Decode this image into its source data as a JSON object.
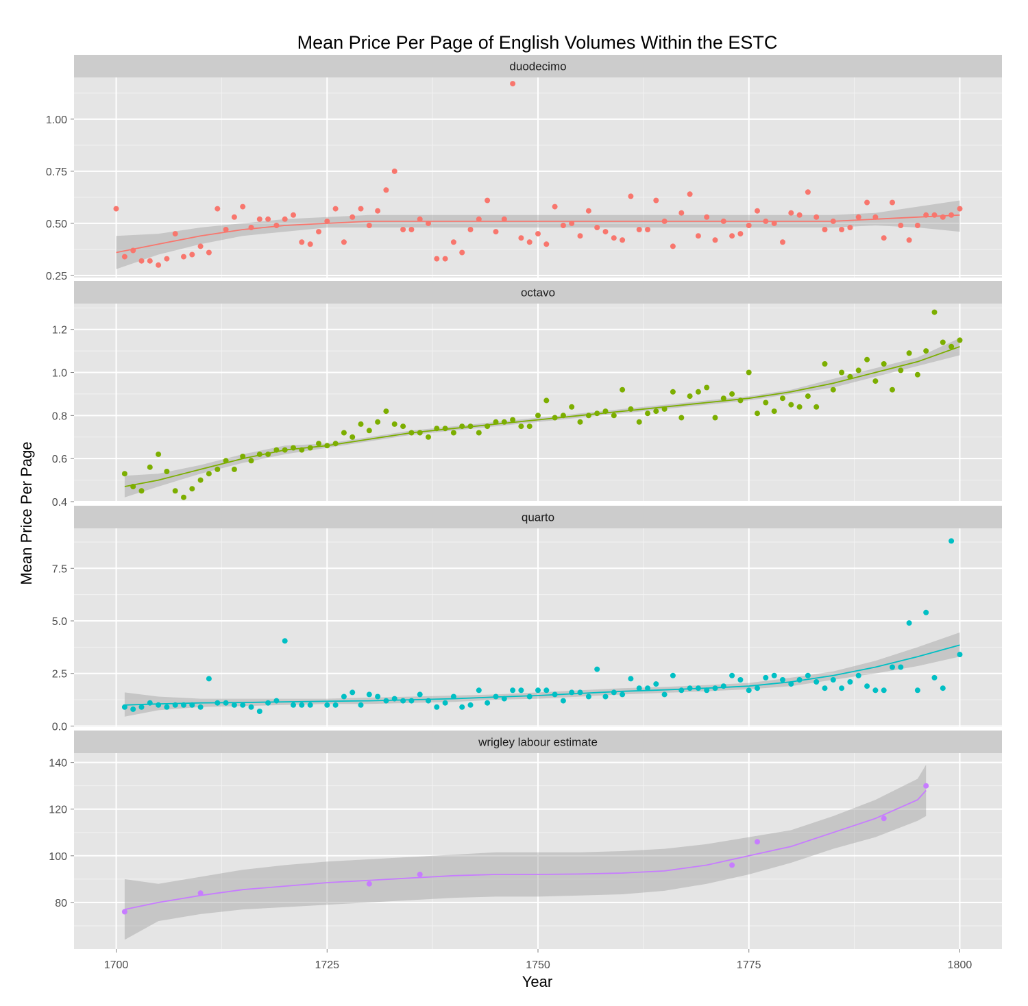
{
  "chart_data": {
    "type": "scatter",
    "title": "Mean Price Per Page of English Volumes Within the ESTC",
    "xlabel": "Year",
    "ylabel": "Mean Price Per Page",
    "xlim": [
      1695,
      1805
    ],
    "x_ticks": [
      1700,
      1725,
      1750,
      1775,
      1800
    ],
    "grid": true,
    "legend": "none",
    "smoother": "loess with confidence band",
    "panels": [
      {
        "name": "duodecimo",
        "color": "#F8766D",
        "ylim": [
          0.24,
          1.2
        ],
        "y_ticks": [
          0.25,
          0.5,
          0.75,
          1.0
        ],
        "y_tick_labels": [
          "0.25",
          "0.50",
          "0.75",
          "1.00"
        ],
        "points": {
          "x": [
            1700,
            1701,
            1702,
            1703,
            1704,
            1705,
            1706,
            1707,
            1708,
            1709,
            1710,
            1711,
            1712,
            1713,
            1714,
            1715,
            1716,
            1717,
            1718,
            1719,
            1720,
            1721,
            1722,
            1723,
            1724,
            1725,
            1726,
            1727,
            1728,
            1729,
            1730,
            1731,
            1732,
            1733,
            1734,
            1735,
            1736,
            1737,
            1738,
            1739,
            1740,
            1741,
            1742,
            1743,
            1744,
            1745,
            1746,
            1747,
            1748,
            1749,
            1750,
            1751,
            1752,
            1753,
            1754,
            1755,
            1756,
            1757,
            1758,
            1759,
            1760,
            1761,
            1762,
            1763,
            1764,
            1765,
            1766,
            1767,
            1768,
            1769,
            1770,
            1771,
            1772,
            1773,
            1774,
            1775,
            1776,
            1777,
            1778,
            1779,
            1780,
            1781,
            1782,
            1783,
            1784,
            1785,
            1786,
            1787,
            1788,
            1789,
            1790,
            1791,
            1792,
            1793,
            1794,
            1795,
            1796,
            1797,
            1798,
            1799,
            1800
          ],
          "y": [
            0.57,
            0.34,
            0.37,
            0.32,
            0.32,
            0.3,
            0.33,
            0.45,
            0.34,
            0.35,
            0.39,
            0.36,
            0.57,
            0.47,
            0.53,
            0.58,
            0.48,
            0.52,
            0.52,
            0.49,
            0.52,
            0.54,
            0.41,
            0.4,
            0.46,
            0.51,
            0.57,
            0.41,
            0.53,
            0.57,
            0.49,
            0.56,
            0.66,
            0.75,
            0.47,
            0.47,
            0.52,
            0.5,
            0.33,
            0.33,
            0.41,
            0.36,
            0.47,
            0.52,
            0.61,
            0.46,
            0.52,
            1.17,
            0.43,
            0.41,
            0.45,
            0.4,
            0.58,
            0.49,
            0.5,
            0.44,
            0.56,
            0.48,
            0.46,
            0.43,
            0.42,
            0.63,
            0.47,
            0.47,
            0.61,
            0.51,
            0.39,
            0.55,
            0.64,
            0.44,
            0.53,
            0.42,
            0.51,
            0.44,
            0.45,
            0.49,
            0.56,
            0.51,
            0.5,
            0.41,
            0.55,
            0.54,
            0.65,
            0.53,
            0.47,
            0.51,
            0.47,
            0.48,
            0.53,
            0.6,
            0.53,
            0.43,
            0.6,
            0.49,
            0.42,
            0.49,
            0.54,
            0.54,
            0.53,
            0.54,
            0.57
          ]
        },
        "smooth": {
          "x": [
            1700,
            1705,
            1710,
            1715,
            1720,
            1725,
            1730,
            1735,
            1740,
            1745,
            1750,
            1755,
            1760,
            1765,
            1770,
            1775,
            1780,
            1785,
            1790,
            1795,
            1800
          ],
          "y": [
            0.36,
            0.4,
            0.44,
            0.47,
            0.49,
            0.5,
            0.51,
            0.51,
            0.51,
            0.51,
            0.51,
            0.51,
            0.51,
            0.51,
            0.51,
            0.51,
            0.51,
            0.51,
            0.52,
            0.53,
            0.54
          ],
          "lower": [
            0.28,
            0.35,
            0.4,
            0.44,
            0.46,
            0.48,
            0.48,
            0.48,
            0.48,
            0.48,
            0.48,
            0.48,
            0.48,
            0.48,
            0.48,
            0.48,
            0.48,
            0.48,
            0.49,
            0.48,
            0.46
          ],
          "upper": [
            0.44,
            0.45,
            0.48,
            0.5,
            0.52,
            0.53,
            0.54,
            0.54,
            0.54,
            0.54,
            0.54,
            0.54,
            0.54,
            0.54,
            0.54,
            0.54,
            0.54,
            0.54,
            0.55,
            0.58,
            0.61
          ]
        }
      },
      {
        "name": "octavo",
        "color": "#7CAE00",
        "ylim": [
          0.4,
          1.32
        ],
        "y_ticks": [
          0.4,
          0.6,
          0.8,
          1.0,
          1.2
        ],
        "y_tick_labels": [
          "0.4",
          "0.6",
          "0.8",
          "1.0",
          "1.2"
        ],
        "points": {
          "x": [
            1701,
            1702,
            1703,
            1704,
            1705,
            1706,
            1707,
            1708,
            1709,
            1710,
            1711,
            1712,
            1713,
            1714,
            1715,
            1716,
            1717,
            1718,
            1719,
            1720,
            1721,
            1722,
            1723,
            1724,
            1725,
            1726,
            1727,
            1728,
            1729,
            1730,
            1731,
            1732,
            1733,
            1734,
            1735,
            1736,
            1737,
            1738,
            1739,
            1740,
            1741,
            1742,
            1743,
            1744,
            1745,
            1746,
            1747,
            1748,
            1749,
            1750,
            1751,
            1752,
            1753,
            1754,
            1755,
            1756,
            1757,
            1758,
            1759,
            1760,
            1761,
            1762,
            1763,
            1764,
            1765,
            1766,
            1767,
            1768,
            1769,
            1770,
            1771,
            1772,
            1773,
            1774,
            1775,
            1776,
            1777,
            1778,
            1779,
            1780,
            1781,
            1782,
            1783,
            1784,
            1785,
            1786,
            1787,
            1788,
            1789,
            1790,
            1791,
            1792,
            1793,
            1794,
            1795,
            1796,
            1797,
            1798,
            1799,
            1800
          ],
          "y": [
            0.53,
            0.47,
            0.45,
            0.56,
            0.62,
            0.54,
            0.45,
            0.42,
            0.46,
            0.5,
            0.53,
            0.55,
            0.59,
            0.55,
            0.61,
            0.59,
            0.62,
            0.62,
            0.64,
            0.64,
            0.65,
            0.64,
            0.65,
            0.67,
            0.66,
            0.67,
            0.72,
            0.7,
            0.76,
            0.73,
            0.77,
            0.82,
            0.76,
            0.75,
            0.72,
            0.72,
            0.7,
            0.74,
            0.74,
            0.72,
            0.75,
            0.75,
            0.72,
            0.75,
            0.77,
            0.77,
            0.78,
            0.75,
            0.75,
            0.8,
            0.87,
            0.79,
            0.8,
            0.84,
            0.77,
            0.8,
            0.81,
            0.82,
            0.8,
            0.92,
            0.83,
            0.77,
            0.81,
            0.82,
            0.83,
            0.91,
            0.79,
            0.89,
            0.91,
            0.93,
            0.79,
            0.88,
            0.9,
            0.87,
            1.0,
            0.81,
            0.86,
            0.82,
            0.88,
            0.85,
            0.84,
            0.89,
            0.84,
            1.04,
            0.92,
            1.0,
            0.98,
            1.01,
            1.06,
            0.96,
            1.04,
            0.92,
            1.01,
            1.09,
            0.99,
            1.1,
            1.28,
            1.14,
            1.12,
            1.15
          ]
        },
        "smooth": {
          "x": [
            1701,
            1705,
            1710,
            1715,
            1720,
            1725,
            1730,
            1735,
            1740,
            1745,
            1750,
            1755,
            1760,
            1765,
            1770,
            1775,
            1780,
            1785,
            1790,
            1795,
            1800
          ],
          "y": [
            0.47,
            0.5,
            0.55,
            0.6,
            0.64,
            0.66,
            0.69,
            0.72,
            0.74,
            0.76,
            0.78,
            0.8,
            0.82,
            0.84,
            0.86,
            0.88,
            0.91,
            0.95,
            1.0,
            1.05,
            1.12
          ],
          "lower": [
            0.42,
            0.47,
            0.53,
            0.58,
            0.62,
            0.65,
            0.68,
            0.71,
            0.73,
            0.75,
            0.77,
            0.79,
            0.81,
            0.83,
            0.85,
            0.87,
            0.9,
            0.93,
            0.98,
            1.03,
            1.08
          ],
          "upper": [
            0.52,
            0.53,
            0.57,
            0.62,
            0.66,
            0.67,
            0.7,
            0.73,
            0.75,
            0.77,
            0.79,
            0.81,
            0.83,
            0.85,
            0.87,
            0.89,
            0.92,
            0.97,
            1.02,
            1.07,
            1.16
          ]
        }
      },
      {
        "name": "quarto",
        "color": "#00BFC4",
        "ylim": [
          -0.05,
          9.4
        ],
        "y_ticks": [
          0.0,
          2.5,
          5.0,
          7.5
        ],
        "y_tick_labels": [
          "0.0",
          "2.5",
          "5.0",
          "7.5"
        ],
        "points": {
          "x": [
            1701,
            1702,
            1703,
            1704,
            1705,
            1706,
            1707,
            1708,
            1709,
            1710,
            1711,
            1712,
            1713,
            1714,
            1715,
            1716,
            1717,
            1718,
            1719,
            1720,
            1721,
            1722,
            1723,
            1725,
            1726,
            1727,
            1728,
            1729,
            1730,
            1731,
            1732,
            1733,
            1734,
            1735,
            1736,
            1737,
            1738,
            1739,
            1740,
            1741,
            1742,
            1743,
            1744,
            1745,
            1746,
            1747,
            1748,
            1749,
            1750,
            1751,
            1752,
            1753,
            1754,
            1755,
            1756,
            1757,
            1758,
            1759,
            1760,
            1761,
            1762,
            1763,
            1764,
            1765,
            1766,
            1767,
            1768,
            1769,
            1770,
            1771,
            1772,
            1773,
            1774,
            1775,
            1776,
            1777,
            1778,
            1779,
            1780,
            1781,
            1782,
            1783,
            1784,
            1785,
            1786,
            1787,
            1788,
            1789,
            1790,
            1791,
            1792,
            1793,
            1794,
            1795,
            1796,
            1797,
            1798,
            1799,
            1800
          ],
          "y": [
            0.9,
            0.8,
            0.9,
            1.1,
            1.0,
            0.9,
            1.0,
            1.0,
            1.0,
            0.9,
            2.25,
            1.1,
            1.1,
            1.0,
            1.0,
            0.9,
            0.7,
            1.1,
            1.2,
            4.05,
            1.0,
            1.0,
            1.0,
            1.0,
            1.0,
            1.4,
            1.6,
            1.0,
            1.5,
            1.4,
            1.2,
            1.3,
            1.2,
            1.2,
            1.5,
            1.2,
            0.9,
            1.1,
            1.4,
            0.9,
            1.0,
            1.7,
            1.1,
            1.4,
            1.3,
            1.7,
            1.7,
            1.4,
            1.7,
            1.7,
            1.5,
            1.2,
            1.6,
            1.6,
            1.4,
            2.7,
            1.4,
            1.6,
            1.5,
            2.25,
            1.8,
            1.8,
            2.0,
            1.5,
            2.4,
            1.7,
            1.8,
            1.8,
            1.7,
            1.8,
            1.9,
            2.4,
            2.2,
            1.7,
            1.8,
            2.3,
            2.4,
            2.2,
            2.0,
            2.2,
            2.4,
            2.1,
            1.8,
            2.2,
            1.8,
            2.1,
            2.4,
            1.9,
            1.7,
            1.7,
            2.8,
            2.8,
            4.9,
            1.7,
            5.4,
            2.3,
            1.8,
            8.8,
            3.4
          ]
        },
        "smooth": {
          "x": [
            1701,
            1705,
            1710,
            1715,
            1720,
            1725,
            1730,
            1735,
            1740,
            1745,
            1750,
            1755,
            1760,
            1765,
            1770,
            1775,
            1780,
            1785,
            1790,
            1795,
            1800
          ],
          "y": [
            1.0,
            1.05,
            1.1,
            1.12,
            1.15,
            1.18,
            1.2,
            1.25,
            1.3,
            1.38,
            1.45,
            1.55,
            1.65,
            1.72,
            1.8,
            1.9,
            2.1,
            2.4,
            2.8,
            3.3,
            3.85
          ],
          "lower": [
            0.45,
            0.75,
            0.9,
            0.95,
            1.0,
            1.05,
            1.05,
            1.1,
            1.15,
            1.25,
            1.3,
            1.4,
            1.5,
            1.58,
            1.65,
            1.75,
            1.9,
            2.2,
            2.5,
            2.85,
            3.3
          ],
          "upper": [
            1.6,
            1.4,
            1.3,
            1.3,
            1.3,
            1.3,
            1.35,
            1.4,
            1.45,
            1.5,
            1.6,
            1.7,
            1.8,
            1.86,
            1.95,
            2.05,
            2.3,
            2.6,
            3.1,
            3.75,
            4.45
          ]
        }
      },
      {
        "name": "wrigley labour estimate",
        "color": "#C77CFF",
        "ylim": [
          60,
          144
        ],
        "y_ticks": [
          80,
          100,
          120,
          140
        ],
        "y_tick_labels": [
          "80",
          "100",
          "120",
          "140"
        ],
        "points": {
          "x": [
            1701,
            1710,
            1730,
            1736,
            1773,
            1776,
            1791,
            1796
          ],
          "y": [
            76,
            84,
            88,
            92,
            96,
            106,
            116,
            130
          ]
        },
        "smooth": {
          "x": [
            1701,
            1705,
            1710,
            1715,
            1720,
            1725,
            1730,
            1735,
            1740,
            1745,
            1750,
            1755,
            1760,
            1765,
            1770,
            1775,
            1780,
            1785,
            1790,
            1795,
            1796
          ],
          "y": [
            77,
            80,
            83,
            85.5,
            87,
            88.5,
            89.5,
            90.5,
            91.5,
            92,
            92,
            92.2,
            92.6,
            93.5,
            96,
            100,
            104,
            110,
            116,
            124,
            128
          ],
          "lower": [
            64,
            72,
            75,
            77,
            78,
            79,
            80,
            81,
            82,
            82.5,
            82.5,
            83,
            83.5,
            85,
            88,
            92,
            97,
            103,
            108,
            115,
            117
          ],
          "upper": [
            90,
            88,
            91,
            94,
            96,
            97.5,
            98.5,
            99.5,
            100.5,
            101.5,
            101.5,
            101.5,
            102,
            103,
            105,
            108,
            111,
            117,
            124,
            133,
            139
          ]
        }
      }
    ]
  }
}
